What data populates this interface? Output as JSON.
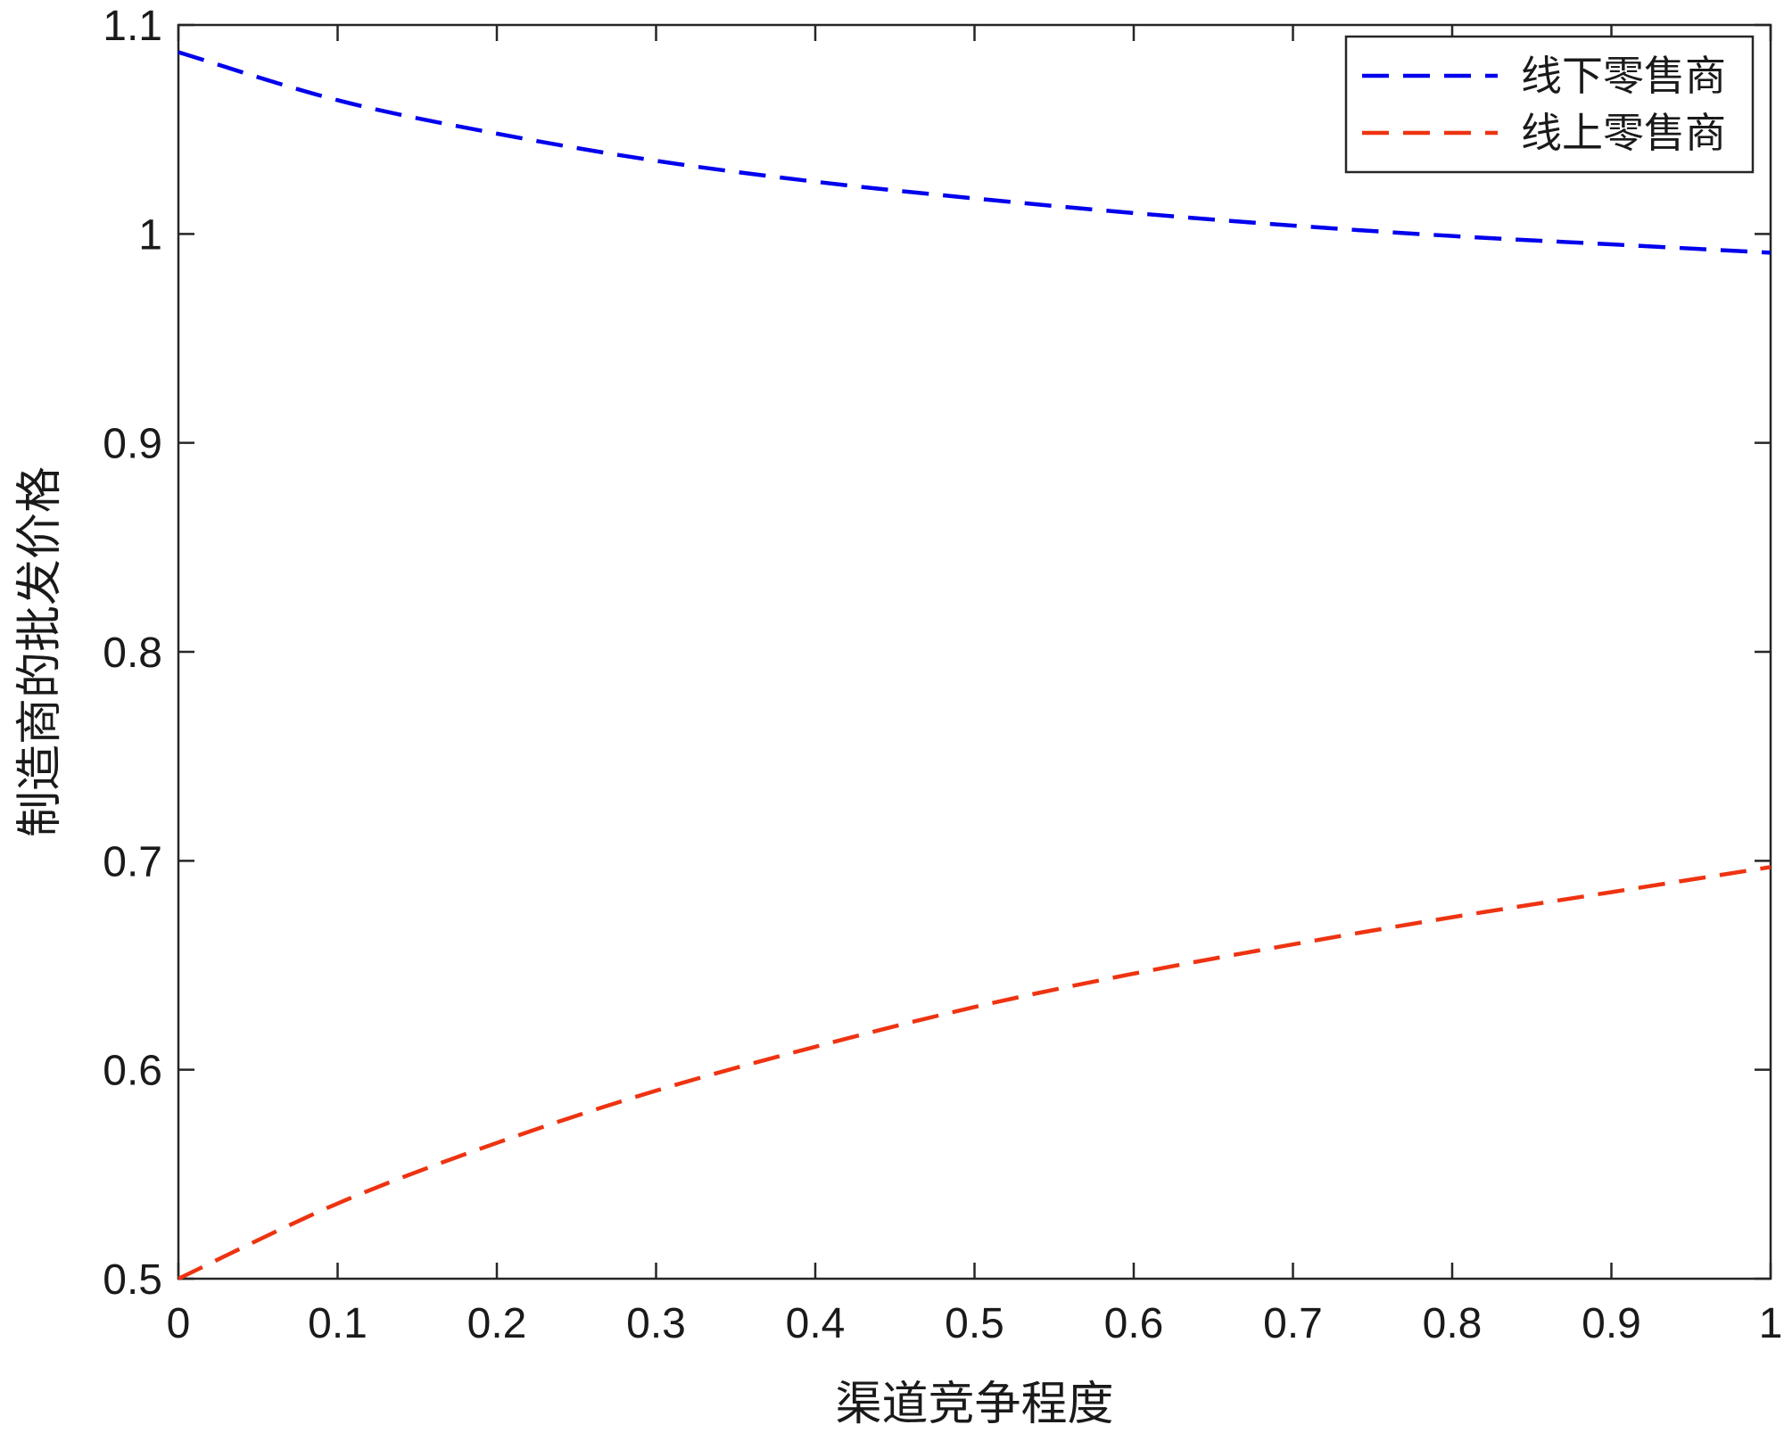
{
  "chart_data": {
    "type": "line",
    "title": "",
    "xlabel": "渠道竞争程度",
    "ylabel": "制造商的批发价格",
    "xlim": [
      0,
      1
    ],
    "ylim": [
      0.5,
      1.1
    ],
    "xticks": [
      0,
      0.1,
      0.2,
      0.3,
      0.4,
      0.5,
      0.6,
      0.7,
      0.8,
      0.9,
      1
    ],
    "xtick_labels": [
      "0",
      "0.1",
      "0.2",
      "0.3",
      "0.4",
      "0.5",
      "0.6",
      "0.7",
      "0.8",
      "0.9",
      "1"
    ],
    "yticks": [
      0.5,
      0.6,
      0.7,
      0.8,
      0.9,
      1.0,
      1.1
    ],
    "ytick_labels": [
      "0.5",
      "0.6",
      "0.7",
      "0.8",
      "0.9",
      "1",
      "1.1"
    ],
    "grid": false,
    "legend_position": "top-right",
    "x": [
      0,
      0.1,
      0.2,
      0.3,
      0.4,
      0.5,
      0.6,
      0.7,
      0.8,
      0.9,
      1
    ],
    "series": [
      {
        "name": "线下零售商",
        "color": "#0000ee",
        "dash": "dashed",
        "values": [
          1.087,
          1.064,
          1.048,
          1.035,
          1.025,
          1.017,
          1.01,
          1.004,
          0.999,
          0.995,
          0.991
        ]
      },
      {
        "name": "线上零售商",
        "color": "#ee3311",
        "dash": "dashed",
        "values": [
          0.5,
          0.536,
          0.565,
          0.59,
          0.611,
          0.63,
          0.646,
          0.66,
          0.673,
          0.685,
          0.697
        ]
      }
    ]
  }
}
